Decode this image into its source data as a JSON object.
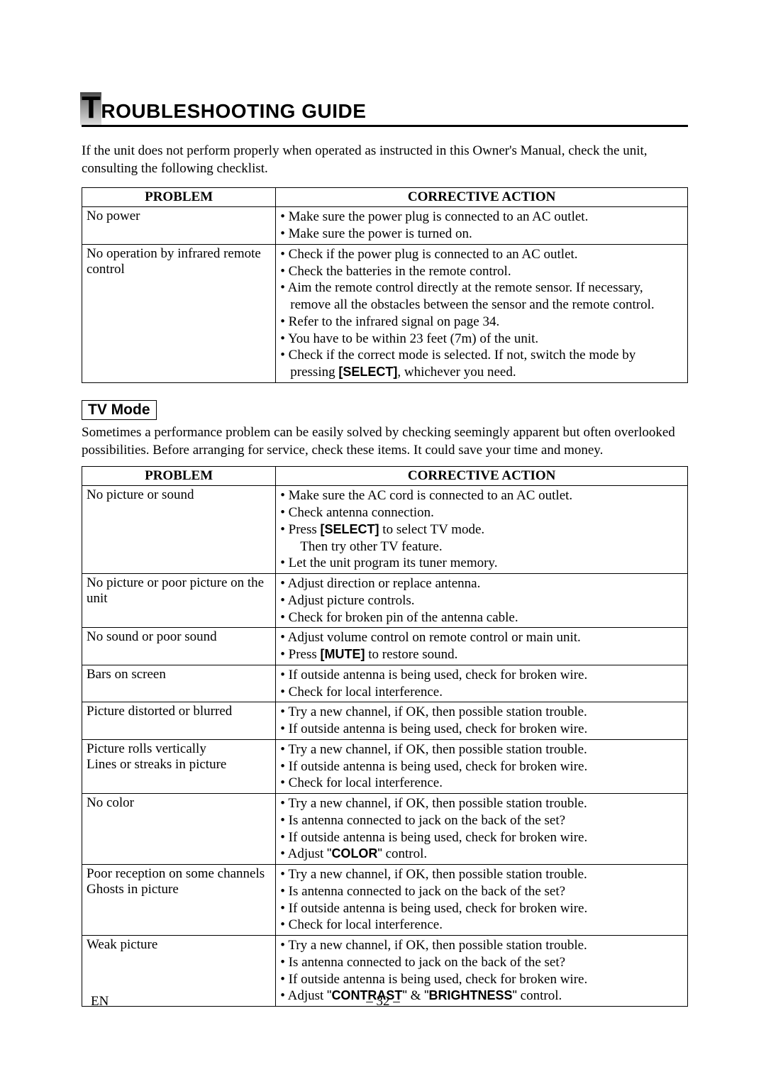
{
  "title_first": "T",
  "title_rest": "ROUBLESHOOTING GUIDE",
  "intro": "If the unit does not perform properly when operated as instructed in this Owner's Manual, check the unit, consulting the following checklist.",
  "headers": {
    "problem": "PROBLEM",
    "action": "CORRECTIVE ACTION"
  },
  "table1": [
    {
      "problem": "No power",
      "actions": [
        "• Make sure the power plug is connected to an AC outlet.",
        "• Make sure the power is turned on."
      ]
    },
    {
      "problem": "No operation by infrared remote control",
      "actions": [
        "• Check if the power plug is connected to an AC outlet.",
        "• Check the batteries in the remote control.",
        "• Aim the remote control directly at the remote sensor. If necessary, remove all the obstacles between the sensor and the remote control.",
        "• Refer to the infrared signal on page 34.",
        "• You have to be within 23 feet (7m) of the unit.",
        "• Check if the correct mode is selected. If not, switch the mode by pressing |[SELECT]|, whichever you need."
      ]
    }
  ],
  "section_label": "TV Mode",
  "section_intro": "Sometimes a performance problem can be easily solved by checking seemingly apparent but often overlooked possibilities. Before arranging for service, check these items. It could save your time and money.",
  "table2": [
    {
      "problem": "No picture or sound",
      "actions": [
        "• Make sure the AC cord is connected to an AC outlet.",
        "• Check antenna connection.",
        "• Press |[SELECT]| to select TV mode.\n  Then try other TV feature.",
        "• Let the unit program its tuner memory."
      ]
    },
    {
      "problem": "No picture or poor picture on the unit",
      "actions": [
        "• Adjust direction or replace antenna.",
        "• Adjust picture controls.",
        "• Check for broken pin of the antenna cable."
      ]
    },
    {
      "problem": "No sound or poor sound",
      "actions": [
        "• Adjust volume control on remote control or main unit.",
        "• Press |[MUTE]| to restore sound."
      ]
    },
    {
      "problem": "Bars on screen",
      "actions": [
        "• If outside antenna is being used, check for broken wire.",
        "• Check for local interference."
      ]
    },
    {
      "problem": "Picture distorted or blurred",
      "actions": [
        "• Try a new channel, if OK, then possible station trouble.",
        "• If outside antenna is being used, check for broken wire."
      ]
    },
    {
      "problem": "Picture rolls vertically\nLines or streaks in picture",
      "actions": [
        "• Try a new channel, if OK, then possible station trouble.",
        "• If outside antenna is being used, check for broken wire.",
        "• Check for local interference."
      ]
    },
    {
      "problem": "No color",
      "actions": [
        "• Try a new channel, if OK, then possible station trouble.",
        "• Is antenna connected to jack on the back of the set?",
        "• If outside antenna is being used, check for broken wire.",
        "• Adjust ~\"~|COLOR|~\"~ control."
      ]
    },
    {
      "problem": "Poor reception on some channels\nGhosts in picture",
      "actions": [
        "• Try a new channel, if OK, then possible station trouble.",
        "• Is antenna connected to jack on the back of the set?",
        "• If outside antenna is being used, check for broken wire.",
        "• Check for local interference."
      ]
    },
    {
      "problem": "Weak picture",
      "actions": [
        "• Try a new channel, if OK, then possible station trouble.",
        "• Is antenna connected to jack on the back of the set?",
        "• If outside antenna is being used, check for broken wire.",
        "• Adjust ~\"~|CONTRAST|~\"~ & ~\"~|BRIGHTNESS|~\"~ control."
      ]
    }
  ],
  "footer_lang": "EN",
  "footer_page": "– 32 –"
}
